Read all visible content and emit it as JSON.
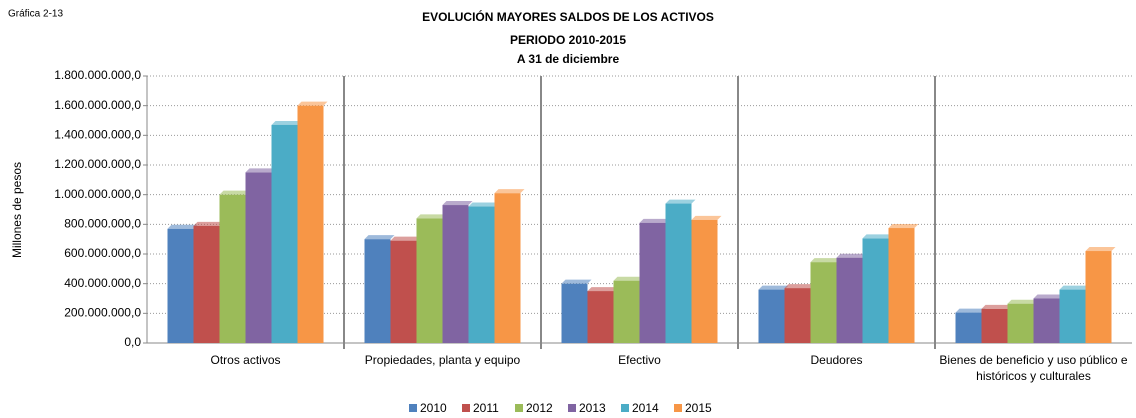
{
  "label": "Gráfica 2-13",
  "chart_data": {
    "type": "bar",
    "title": "EVOLUCIÓN MAYORES SALDOS DE LOS ACTIVOS",
    "subtitle": [
      "PERIODO 2010-2015",
      "A 31 de diciembre"
    ],
    "y_label": "Millones de pesos",
    "categories": [
      "Otros activos",
      "Propiedades, planta y equipo",
      "Efectivo",
      "Deudores",
      "Bienes de beneficio y uso público e históricos y culturales"
    ],
    "series": [
      {
        "name": "2010",
        "color": "#4f81bd",
        "values": [
          770000000,
          700000000,
          400000000,
          360000000,
          205000000
        ]
      },
      {
        "name": "2011",
        "color": "#c0504d",
        "values": [
          790000000,
          690000000,
          350000000,
          370000000,
          230000000
        ]
      },
      {
        "name": "2012",
        "color": "#9bbb59",
        "values": [
          1000000000,
          840000000,
          420000000,
          545000000,
          265000000
        ]
      },
      {
        "name": "2013",
        "color": "#8064a2",
        "values": [
          1150000000,
          930000000,
          810000000,
          575000000,
          300000000
        ]
      },
      {
        "name": "2014",
        "color": "#4bacc6",
        "values": [
          1470000000,
          920000000,
          940000000,
          705000000,
          360000000
        ]
      },
      {
        "name": "2015",
        "color": "#f79646",
        "values": [
          1600000000,
          1010000000,
          830000000,
          775000000,
          620000000
        ]
      }
    ],
    "ylim": [
      0,
      1800000000
    ],
    "yticks": [
      {
        "value": 0,
        "label": "0,0"
      },
      {
        "value": 200000000,
        "label": "200.000.000,0"
      },
      {
        "value": 400000000,
        "label": "400.000.000,0"
      },
      {
        "value": 600000000,
        "label": "600.000.000,0"
      },
      {
        "value": 800000000,
        "label": "800.000.000,0"
      },
      {
        "value": 1000000000,
        "label": "1.000.000.000,0"
      },
      {
        "value": 1200000000,
        "label": "1.200.000.000,0"
      },
      {
        "value": 1400000000,
        "label": "1.400.000.000,0"
      },
      {
        "value": 1600000000,
        "label": "1.600.000.000,0"
      },
      {
        "value": 1800000000,
        "label": "1.800.000.000,0"
      }
    ],
    "grid": true,
    "legend": "bottom"
  }
}
